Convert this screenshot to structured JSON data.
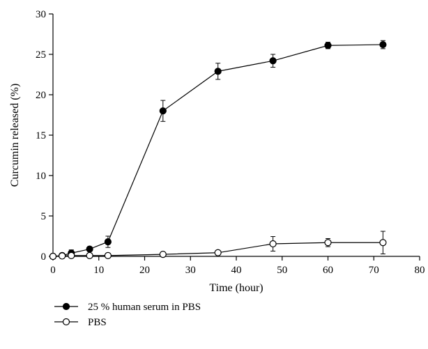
{
  "chart_data": {
    "type": "line",
    "xlabel": "Time (hour)",
    "ylabel": "Curcumin released (%)",
    "xlim": [
      0,
      80
    ],
    "ylim": [
      0,
      30
    ],
    "xticks": [
      "0",
      "10",
      "20",
      "30",
      "40",
      "50",
      "60",
      "70",
      "80"
    ],
    "yticks": [
      "0",
      "5",
      "10",
      "15",
      "20",
      "25",
      "30"
    ],
    "grid": false,
    "legend_position": "bottom-left",
    "series": [
      {
        "name": "25 % human serum in PBS",
        "marker": "filled-circle",
        "color": "#000000",
        "x": [
          0,
          2,
          4,
          8,
          12,
          24,
          36,
          48,
          60,
          72
        ],
        "y": [
          0,
          0.1,
          0.4,
          0.9,
          1.8,
          18.0,
          22.9,
          24.2,
          26.1,
          26.2
        ],
        "error": [
          0,
          0.1,
          0.4,
          0.3,
          0.7,
          1.3,
          1.0,
          0.8,
          0.4,
          0.5
        ]
      },
      {
        "name": "PBS",
        "marker": "open-circle",
        "color": "#000000",
        "x": [
          0,
          2,
          4,
          8,
          12,
          24,
          36,
          48,
          60,
          72
        ],
        "y": [
          0,
          0.05,
          0.1,
          0.1,
          0.1,
          0.25,
          0.45,
          1.55,
          1.7,
          1.7
        ],
        "error": [
          0,
          0,
          0,
          0,
          0,
          0,
          0,
          0.9,
          0.5,
          1.4
        ]
      }
    ]
  }
}
